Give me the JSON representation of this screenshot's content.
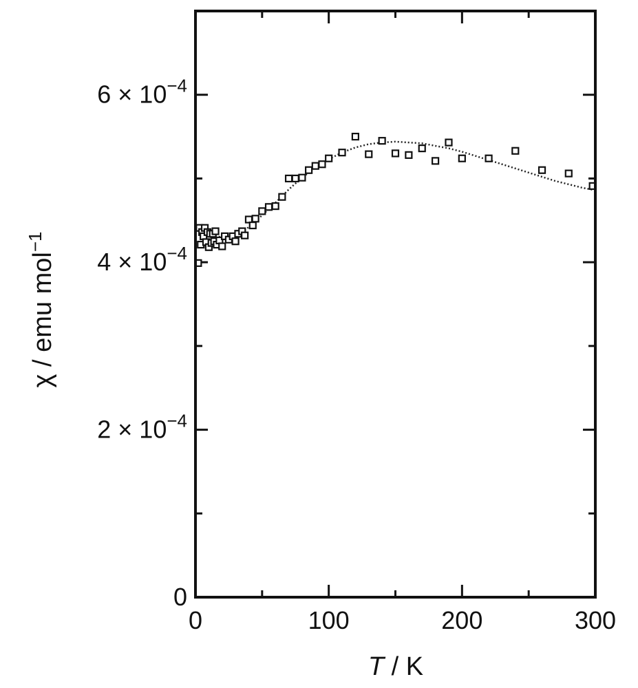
{
  "chart_data": {
    "type": "scatter",
    "xlabel": {
      "symbol": "T",
      "unit": " / K"
    },
    "ylabel": {
      "symbol": "χ",
      "unit": " / emu mol",
      "unit_exp": "−1"
    },
    "xlim": [
      0,
      300
    ],
    "ylim": [
      0,
      0.0007
    ],
    "x_ticks": [
      {
        "value": 0,
        "label": "0"
      },
      {
        "value": 100,
        "label": "100"
      },
      {
        "value": 200,
        "label": "200"
      },
      {
        "value": 300,
        "label": "300"
      }
    ],
    "y_ticks": [
      {
        "value": 0,
        "label": "0",
        "mantissa": "",
        "exponent": ""
      },
      {
        "value": 0.0002,
        "label": "2 × 10−4",
        "mantissa": "2 × 10",
        "exponent": "−4"
      },
      {
        "value": 0.0004,
        "label": "4 × 10−4",
        "mantissa": "4 × 10",
        "exponent": "−4"
      },
      {
        "value": 0.0006,
        "label": "6 × 10−4",
        "mantissa": "6 × 10",
        "exponent": "−4"
      }
    ],
    "grid": false,
    "series": [
      {
        "marker": "open-square",
        "x": [
          2,
          3,
          4,
          5,
          6,
          7,
          8,
          9,
          10,
          11,
          12,
          13,
          14,
          15,
          16,
          18,
          20,
          22,
          25,
          28,
          30,
          32,
          35,
          37,
          40,
          43,
          45,
          50,
          55,
          60,
          65,
          70,
          75,
          80,
          85,
          90,
          95,
          100,
          110,
          120,
          130,
          140,
          150,
          160,
          170,
          180,
          190,
          200,
          220,
          240,
          260,
          280,
          298
        ],
        "y": [
          0.000399,
          0.000441,
          0.000421,
          0.000436,
          0.000431,
          0.000441,
          0.000424,
          0.000436,
          0.000418,
          0.000434,
          0.000423,
          0.000434,
          0.000425,
          0.000437,
          0.000421,
          0.000426,
          0.000419,
          0.000431,
          0.000427,
          0.000431,
          0.000425,
          0.000434,
          0.000437,
          0.000432,
          0.000451,
          0.000444,
          0.000452,
          0.000461,
          0.000466,
          0.000467,
          0.000478,
          0.0005,
          0.0005,
          0.000501,
          0.00051,
          0.000515,
          0.000517,
          0.000524,
          0.000531,
          0.00055,
          0.000529,
          0.000545,
          0.00053,
          0.000528,
          0.000536,
          0.000521,
          0.000543,
          0.000524,
          0.000524,
          0.000533,
          0.00051,
          0.000506,
          0.000491
        ]
      },
      {
        "style": "dotted-line",
        "x": [
          0,
          5,
          10,
          15,
          20,
          25,
          30,
          35,
          40,
          50,
          60,
          70,
          80,
          90,
          100,
          110,
          120,
          130,
          140,
          150,
          160,
          170,
          180,
          190,
          200,
          210,
          220,
          230,
          240,
          250,
          260,
          270,
          280,
          290,
          300
        ],
        "y": [
          0.000438,
          0.000436,
          0.000433,
          0.000431,
          0.00043,
          0.00043,
          0.000432,
          0.000436,
          0.000442,
          0.000456,
          0.000471,
          0.000487,
          0.000501,
          0.000513,
          0.000523,
          0.000531,
          0.000537,
          0.000541,
          0.000543,
          0.000544,
          0.000543,
          0.000542,
          0.000539,
          0.000536,
          0.000532,
          0.000527,
          0.000522,
          0.000517,
          0.000512,
          0.000507,
          0.000502,
          0.000497,
          0.000493,
          0.000489,
          0.000486
        ]
      }
    ]
  }
}
